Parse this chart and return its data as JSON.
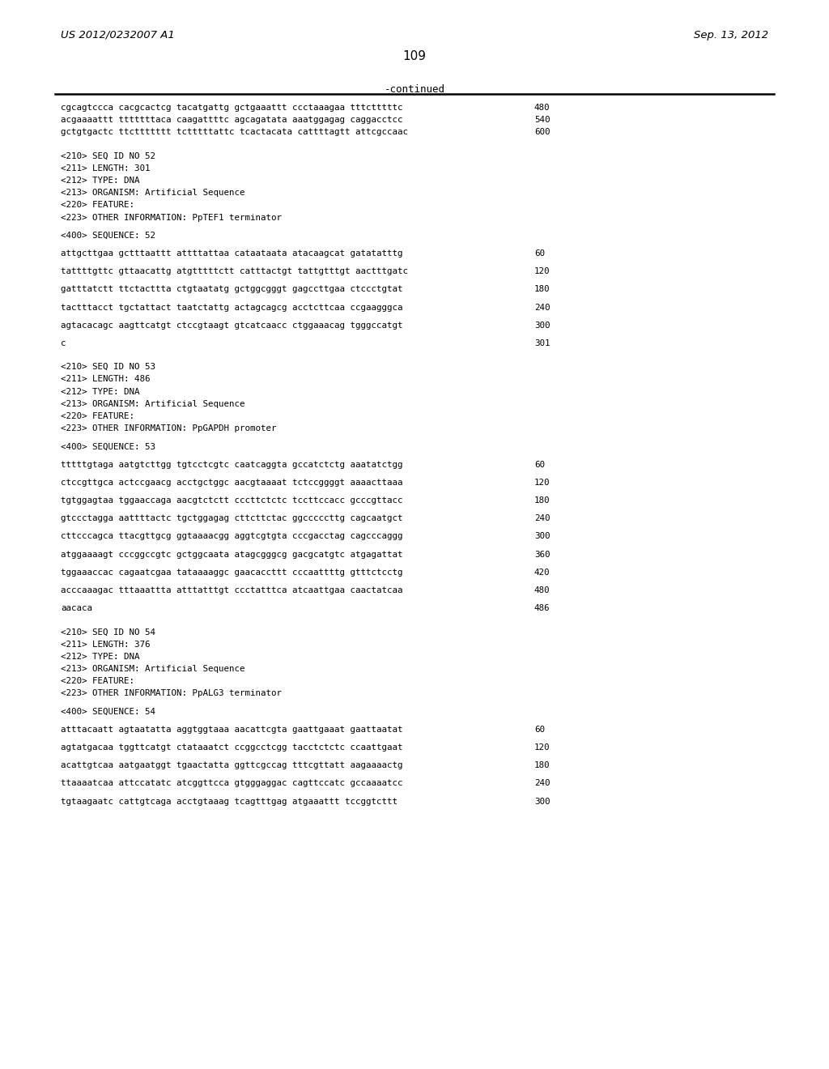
{
  "header_left": "US 2012/0232007 A1",
  "header_right": "Sep. 13, 2012",
  "page_number": "109",
  "continued_label": "-continued",
  "background_color": "#ffffff",
  "text_color": "#000000",
  "lines": [
    {
      "text": "cgcagtccca cacgcactcg tacatgattg gctgaaattt ccctaaagaa tttctttttc",
      "num": "480",
      "type": "seq"
    },
    {
      "text": "acgaaaattt tttttttaca caagattttc agcagatata aaatggagag caggacctcc",
      "num": "540",
      "type": "seq"
    },
    {
      "text": "gctgtgactc ttcttttttt tctttttattc tcactacata cattttagtt attcgccaac",
      "num": "600",
      "type": "seq"
    },
    {
      "text": "",
      "type": "blank2"
    },
    {
      "text": "<210> SEQ ID NO 52",
      "type": "meta"
    },
    {
      "text": "<211> LENGTH: 301",
      "type": "meta"
    },
    {
      "text": "<212> TYPE: DNA",
      "type": "meta"
    },
    {
      "text": "<213> ORGANISM: Artificial Sequence",
      "type": "meta"
    },
    {
      "text": "<220> FEATURE:",
      "type": "meta"
    },
    {
      "text": "<223> OTHER INFORMATION: PpTEF1 terminator",
      "type": "meta"
    },
    {
      "text": "",
      "type": "blank1"
    },
    {
      "text": "<400> SEQUENCE: 52",
      "type": "meta"
    },
    {
      "text": "",
      "type": "blank1"
    },
    {
      "text": "attgcttgaa gctttaattt attttattaa cataataata atacaagcat gatatatttg",
      "num": "60",
      "type": "seq"
    },
    {
      "text": "",
      "type": "blank1"
    },
    {
      "text": "tattttgttc gttaacattg atgtttttctt catttactgt tattgtttgt aactttgatc",
      "num": "120",
      "type": "seq"
    },
    {
      "text": "",
      "type": "blank1"
    },
    {
      "text": "gatttatctt ttctacttta ctgtaatatg gctggcgggt gagccttgaa ctccctgtat",
      "num": "180",
      "type": "seq"
    },
    {
      "text": "",
      "type": "blank1"
    },
    {
      "text": "tactttacct tgctattact taatctattg actagcagcg acctcttcaa ccgaagggca",
      "num": "240",
      "type": "seq"
    },
    {
      "text": "",
      "type": "blank1"
    },
    {
      "text": "agtacacagc aagttcatgt ctccgtaagt gtcatcaacc ctggaaacag tgggccatgt",
      "num": "300",
      "type": "seq"
    },
    {
      "text": "",
      "type": "blank1"
    },
    {
      "text": "c",
      "num": "301",
      "type": "seq"
    },
    {
      "text": "",
      "type": "blank2"
    },
    {
      "text": "<210> SEQ ID NO 53",
      "type": "meta"
    },
    {
      "text": "<211> LENGTH: 486",
      "type": "meta"
    },
    {
      "text": "<212> TYPE: DNA",
      "type": "meta"
    },
    {
      "text": "<213> ORGANISM: Artificial Sequence",
      "type": "meta"
    },
    {
      "text": "<220> FEATURE:",
      "type": "meta"
    },
    {
      "text": "<223> OTHER INFORMATION: PpGAPDH promoter",
      "type": "meta"
    },
    {
      "text": "",
      "type": "blank1"
    },
    {
      "text": "<400> SEQUENCE: 53",
      "type": "meta"
    },
    {
      "text": "",
      "type": "blank1"
    },
    {
      "text": "tttttgtaga aatgtcttgg tgtcctcgtc caatcaggta gccatctctg aaatatctgg",
      "num": "60",
      "type": "seq"
    },
    {
      "text": "",
      "type": "blank1"
    },
    {
      "text": "ctccgttgca actccgaacg acctgctggc aacgtaaaat tctccggggt aaaacttaaa",
      "num": "120",
      "type": "seq"
    },
    {
      "text": "",
      "type": "blank1"
    },
    {
      "text": "tgtggagtaa tggaaccaga aacgtctctt cccttctctc tccttccacc gcccgttacc",
      "num": "180",
      "type": "seq"
    },
    {
      "text": "",
      "type": "blank1"
    },
    {
      "text": "gtccctagga aattttactc tgctggagag cttcttctac ggcccccttg cagcaatgct",
      "num": "240",
      "type": "seq"
    },
    {
      "text": "",
      "type": "blank1"
    },
    {
      "text": "cttcccagca ttacgttgcg ggtaaaacgg aggtcgtgta cccgacctag cagcccaggg",
      "num": "300",
      "type": "seq"
    },
    {
      "text": "",
      "type": "blank1"
    },
    {
      "text": "atggaaaagt cccggccgtc gctggcaata atagcgggcg gacgcatgtc atgagattat",
      "num": "360",
      "type": "seq"
    },
    {
      "text": "",
      "type": "blank1"
    },
    {
      "text": "tggaaaccac cagaatcgaa tataaaaggc gaacaccttt cccaattttg gtttctcctg",
      "num": "420",
      "type": "seq"
    },
    {
      "text": "",
      "type": "blank1"
    },
    {
      "text": "acccaaagac tttaaattta atttatttgt ccctatttca atcaattgaa caactatcaa",
      "num": "480",
      "type": "seq"
    },
    {
      "text": "",
      "type": "blank1"
    },
    {
      "text": "aacaca",
      "num": "486",
      "type": "seq"
    },
    {
      "text": "",
      "type": "blank2"
    },
    {
      "text": "<210> SEQ ID NO 54",
      "type": "meta"
    },
    {
      "text": "<211> LENGTH: 376",
      "type": "meta"
    },
    {
      "text": "<212> TYPE: DNA",
      "type": "meta"
    },
    {
      "text": "<213> ORGANISM: Artificial Sequence",
      "type": "meta"
    },
    {
      "text": "<220> FEATURE:",
      "type": "meta"
    },
    {
      "text": "<223> OTHER INFORMATION: PpALG3 terminator",
      "type": "meta"
    },
    {
      "text": "",
      "type": "blank1"
    },
    {
      "text": "<400> SEQUENCE: 54",
      "type": "meta"
    },
    {
      "text": "",
      "type": "blank1"
    },
    {
      "text": "atttacaatt agtaatatta aggtggtaaa aacattcgta gaattgaaat gaattaatat",
      "num": "60",
      "type": "seq"
    },
    {
      "text": "",
      "type": "blank1"
    },
    {
      "text": "agtatgacaa tggttcatgt ctataaatct ccggcctcgg tacctctctc ccaattgaat",
      "num": "120",
      "type": "seq"
    },
    {
      "text": "",
      "type": "blank1"
    },
    {
      "text": "acattgtcaa aatgaatggt tgaactatta ggttcgccag tttcgttatt aagaaaactg",
      "num": "180",
      "type": "seq"
    },
    {
      "text": "",
      "type": "blank1"
    },
    {
      "text": "ttaaaatcaa attccatatc atcggttcca gtgggaggac cagttccatc gccaaaatcc",
      "num": "240",
      "type": "seq"
    },
    {
      "text": "",
      "type": "blank1"
    },
    {
      "text": "tgtaagaatc cattgtcaga acctgtaaag tcagtttgag atgaaattt tccggtcttt",
      "num": "300",
      "type": "seq"
    }
  ]
}
